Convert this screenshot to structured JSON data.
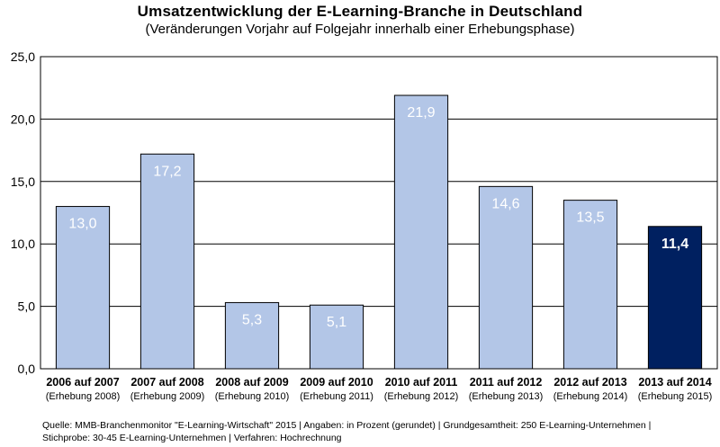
{
  "chart_data": {
    "type": "bar",
    "title": "Umsatzentwicklung  der E-Learning-Branche  in Deutschland",
    "subtitle": "(Veränderungen Vorjahr auf Folgejahr innerhalb einer Erhebungsphase)",
    "categories": [
      "2006 auf 2007",
      "2007 auf 2008",
      "2008 auf 2009",
      "2009 auf 2010",
      "2010 auf 2011",
      "2011 auf 2012",
      "2012 auf 2013",
      "2013 auf 2014"
    ],
    "category_sublabels": [
      "(Erhebung 2008)",
      "(Erhebung 2009)",
      "(Erhebung 2010)",
      "(Erhebung 2011)",
      "(Erhebung 2012)",
      "(Erhebung 2013)",
      "(Erhebung 2014)",
      "(Erhebung 2015)"
    ],
    "values": [
      13.0,
      17.2,
      5.3,
      5.1,
      21.9,
      14.6,
      13.5,
      11.4
    ],
    "value_labels": [
      "13,0",
      "17,2",
      "5,3",
      "5,1",
      "21,9",
      "14,6",
      "13,5",
      "11,4"
    ],
    "highlight_index": 7,
    "ylim": [
      0,
      25
    ],
    "yticks": [
      0,
      5,
      10,
      15,
      20,
      25
    ],
    "ytick_labels": [
      "0,0",
      "5,0",
      "10,0",
      "15,0",
      "20,0",
      "25,0"
    ],
    "xlabel": "",
    "ylabel": "",
    "grid": true,
    "colors": {
      "bar": "#b3c6e7",
      "highlight": "#002060",
      "border": "#000000",
      "grid": "#000000"
    }
  },
  "footer": {
    "line1": "Quelle: MMB-Branchenmonitor \"E-Learning-Wirtschaft\" 2015 | Angaben: in Prozent (gerundet) | Grundgesamtheit: 250 E-Learning-Unternehmen |",
    "line2": "Stichprobe: 30-45 E-Learning-Unternehmen | Verfahren: Hochrechnung"
  }
}
